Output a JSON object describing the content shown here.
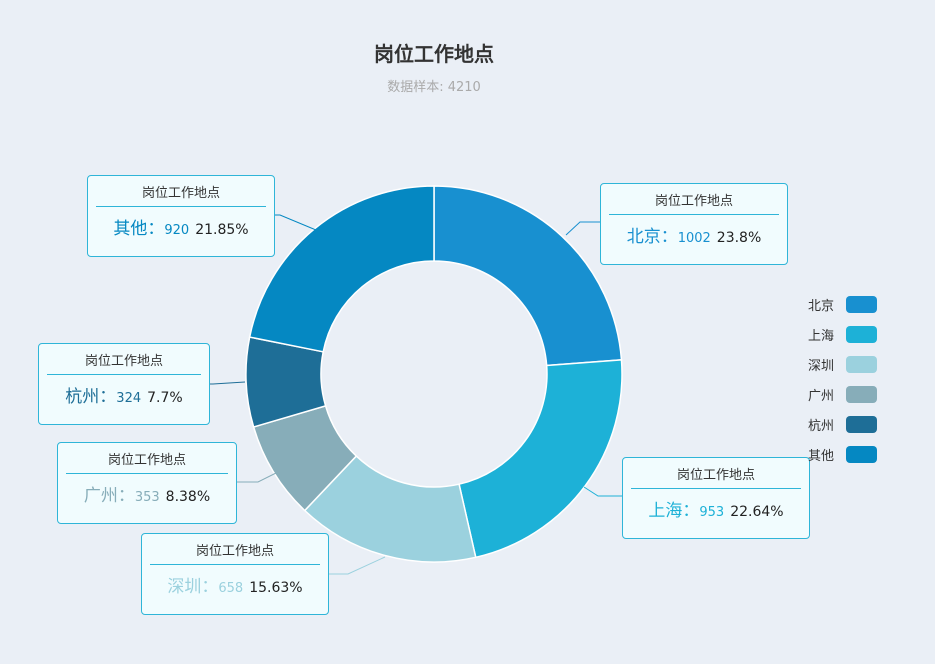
{
  "chart_data": {
    "type": "pie",
    "title": "岗位工作地点",
    "subtitle": "数据样本: 4210",
    "tooltip_caption": "岗位工作地点",
    "slices": [
      {
        "name": "北京",
        "value": 1002,
        "percent": "23.8%",
        "color": "#1890d0"
      },
      {
        "name": "上海",
        "value": 953,
        "percent": "22.64%",
        "color": "#1db1d7"
      },
      {
        "name": "深圳",
        "value": 658,
        "percent": "15.63%",
        "color": "#9bd1de"
      },
      {
        "name": "广州",
        "value": 353,
        "percent": "8.38%",
        "color": "#87adb9"
      },
      {
        "name": "杭州",
        "value": 324,
        "percent": "7.7%",
        "color": "#1e6e97"
      },
      {
        "name": "其他",
        "value": 920,
        "percent": "21.85%",
        "color": "#0588c2"
      }
    ],
    "legend_position": "right",
    "donut": true
  }
}
